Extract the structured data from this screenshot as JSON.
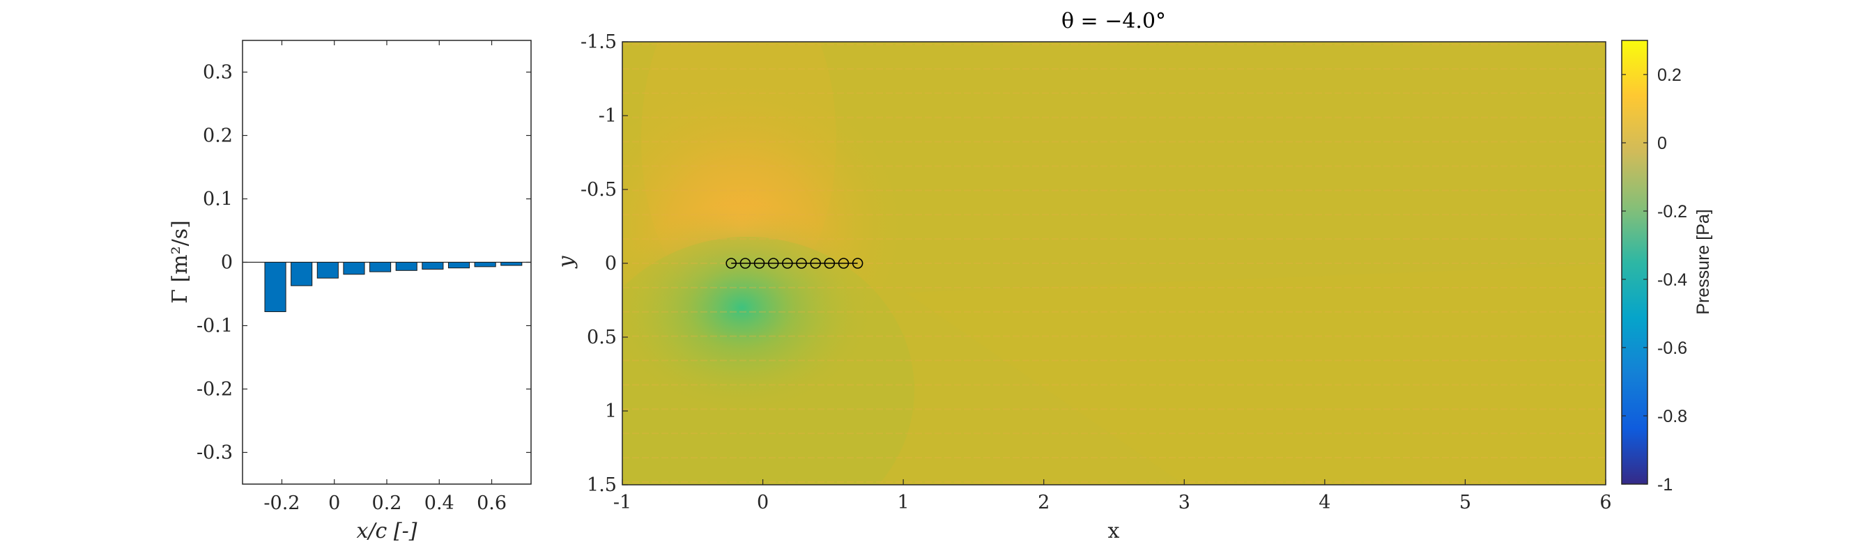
{
  "chart_data": [
    {
      "type": "bar",
      "xlabel": "x/c [-]",
      "ylabel": "Γ [m²/s]",
      "xlim": [
        -0.35,
        0.75
      ],
      "ylim": [
        -0.35,
        0.35
      ],
      "xticks": [
        -0.2,
        0,
        0.2,
        0.4,
        0.6
      ],
      "xtick_labels": [
        "-0.2",
        "0",
        "0.2",
        "0.4",
        "0.6"
      ],
      "yticks": [
        0.3,
        0.2,
        0.1,
        0,
        -0.1,
        -0.2,
        -0.3
      ],
      "ytick_labels": [
        "0.3",
        "0.2",
        "0.1",
        "0",
        "-0.1",
        "-0.2",
        "-0.3"
      ],
      "x": [
        -0.225,
        -0.125,
        -0.025,
        0.075,
        0.175,
        0.275,
        0.375,
        0.475,
        0.575,
        0.675
      ],
      "values": [
        -0.078,
        -0.037,
        -0.025,
        -0.019,
        -0.015,
        -0.013,
        -0.011,
        -0.009,
        -0.007,
        -0.005
      ],
      "bar_color": "#0072BD",
      "grid": false
    },
    {
      "type": "heatmap",
      "title": "θ = −4.0°",
      "xlabel": "x",
      "ylabel": "y",
      "xlim": [
        -1,
        6
      ],
      "ylim": [
        -1.5,
        1.5
      ],
      "y_reversed": true,
      "xticks": [
        -1,
        0,
        1,
        2,
        3,
        4,
        5,
        6
      ],
      "xtick_labels": [
        "-1",
        "0",
        "1",
        "2",
        "3",
        "4",
        "5",
        "6"
      ],
      "yticks": [
        -1.5,
        -1,
        -0.5,
        0,
        0.5,
        1,
        1.5
      ],
      "ytick_labels": [
        "-1.5",
        "-1",
        "-0.5",
        "0",
        "0.5",
        "1",
        "1.5"
      ],
      "colorbar": {
        "label": "Pressure [Pa]",
        "range": [
          -1,
          0.3
        ],
        "ticks": [
          0.2,
          0,
          -0.2,
          -0.4,
          -0.6,
          -0.8,
          -1
        ],
        "tick_labels": [
          "0.2",
          "0",
          "-0.2",
          "-0.4",
          "-0.6",
          "-0.8",
          "-1"
        ],
        "colormap": "parula"
      },
      "panels": {
        "x": [
          -0.225,
          -0.125,
          -0.025,
          0.075,
          0.175,
          0.275,
          0.375,
          0.475,
          0.575,
          0.675
        ],
        "y": 0
      },
      "background_pressure": 0.0,
      "high_pressure_center": {
        "x": -0.15,
        "y": -0.25,
        "value": 0.1
      },
      "low_pressure_center": {
        "x": -0.15,
        "y": 0.3,
        "value": -0.2
      }
    }
  ]
}
